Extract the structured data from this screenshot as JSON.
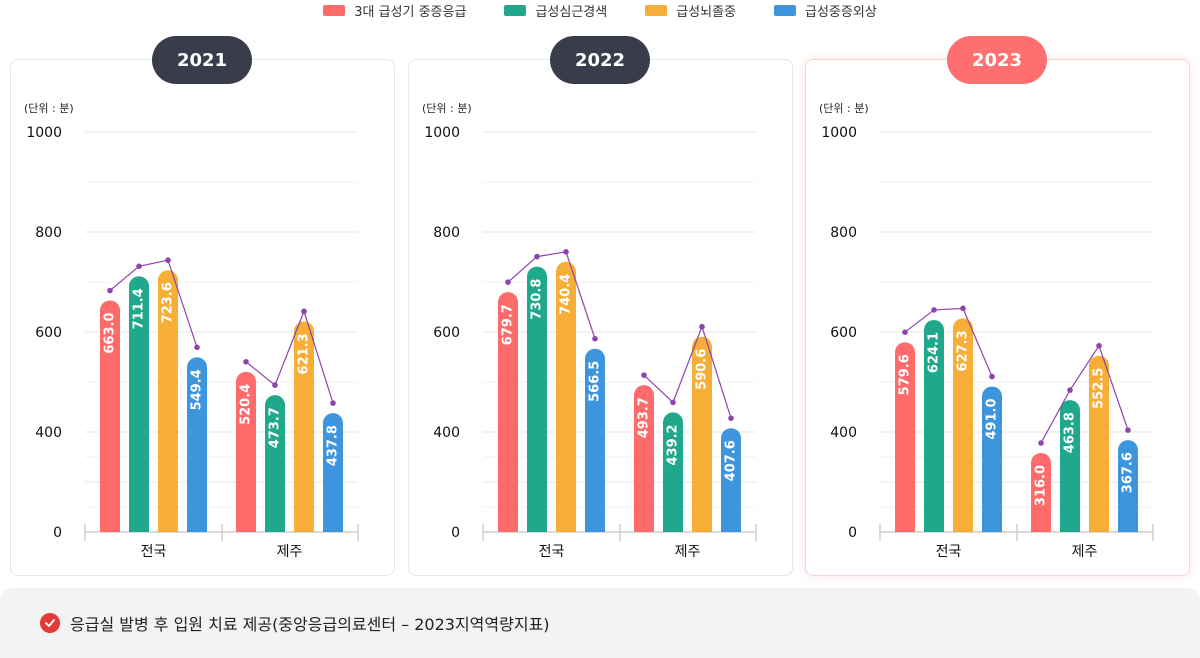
{
  "legend": [
    {
      "label": "3대 급성기 중증응급",
      "color": "#ff6b6b"
    },
    {
      "label": "급성심근경색",
      "color": "#1fa88b"
    },
    {
      "label": "급성뇌졸중",
      "color": "#f7ae36"
    },
    {
      "label": "급성중증외상",
      "color": "#3d95de"
    }
  ],
  "unit_label": "(단위 : 분)",
  "footer": {
    "text": "응급실 발병 후 입원 치료 제공(중앙응급의료센터 – 2023지역역량지표)"
  },
  "chart_data": [
    {
      "type": "bar",
      "title": "2021",
      "highlight": false,
      "categories": [
        "전국",
        "제주"
      ],
      "yticks": [
        "1000",
        "800",
        "600",
        "400",
        "0"
      ],
      "series": [
        {
          "name": "3대 급성기 중증응급",
          "values": [
            663.0,
            520.4
          ]
        },
        {
          "name": "급성심근경색",
          "values": [
            711.4,
            473.7
          ]
        },
        {
          "name": "급성뇌졸중",
          "values": [
            723.6,
            621.3
          ]
        },
        {
          "name": "급성중증외상",
          "values": [
            549.4,
            437.8
          ]
        }
      ]
    },
    {
      "type": "bar",
      "title": "2022",
      "highlight": false,
      "categories": [
        "전국",
        "제주"
      ],
      "yticks": [
        "1000",
        "800",
        "600",
        "400",
        "0"
      ],
      "series": [
        {
          "name": "3대 급성기 중증응급",
          "values": [
            679.7,
            493.7
          ]
        },
        {
          "name": "급성심근경색",
          "values": [
            730.8,
            439.2
          ]
        },
        {
          "name": "급성뇌졸중",
          "values": [
            740.4,
            590.6
          ]
        },
        {
          "name": "급성중증외상",
          "values": [
            566.5,
            407.6
          ]
        }
      ]
    },
    {
      "type": "bar",
      "title": "2023",
      "highlight": true,
      "categories": [
        "전국",
        "제주"
      ],
      "yticks": [
        "1000",
        "800",
        "600",
        "400",
        "0"
      ],
      "series": [
        {
          "name": "3대 급성기 중증응급",
          "values": [
            579.6,
            316.0
          ]
        },
        {
          "name": "급성심근경색",
          "values": [
            624.1,
            463.8
          ]
        },
        {
          "name": "급성뇌졸중",
          "values": [
            627.3,
            552.5
          ]
        },
        {
          "name": "급성중증외상",
          "values": [
            491.0,
            367.6
          ]
        }
      ]
    }
  ]
}
